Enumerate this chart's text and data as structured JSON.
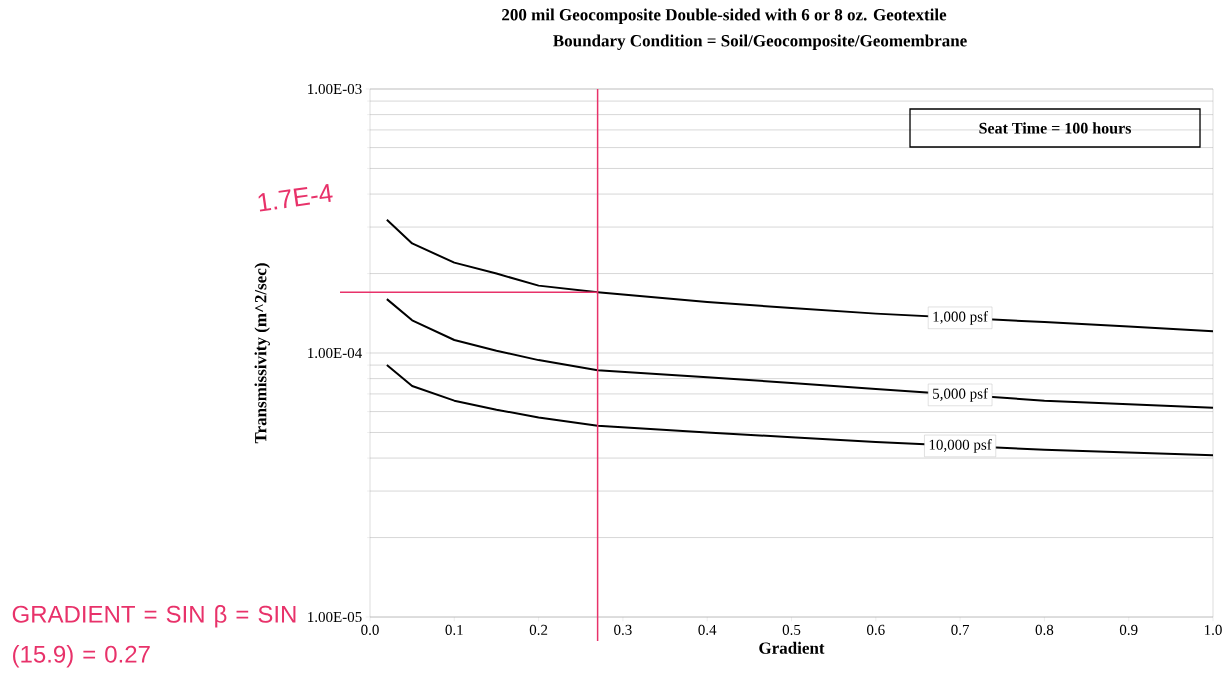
{
  "chart_data": {
    "type": "line",
    "title": "200 mil Geocomposite Double-sided with 6 or 8 oz. Geotextile",
    "subtitle": "Boundary Condition = Soil/Geocomposite/Geomembrane",
    "xlabel": "Gradient",
    "ylabel": "Transmissivity (m^2/sec)",
    "x": [
      0.02,
      0.05,
      0.1,
      0.15,
      0.2,
      0.27,
      0.4,
      0.5,
      0.6,
      0.8,
      0.9,
      1.0
    ],
    "series": [
      {
        "name": "1,000 psf",
        "color": "#000000",
        "values": [
          0.00032,
          0.00026,
          0.00022,
          0.0002,
          0.00018,
          0.00017,
          0.000156,
          0.000148,
          0.000141,
          0.000131,
          0.000126,
          0.000121
        ]
      },
      {
        "name": "5,000 psf",
        "color": "#000000",
        "values": [
          0.00016,
          0.000133,
          0.000112,
          0.000102,
          9.4e-05,
          8.6e-05,
          8.1e-05,
          7.7e-05,
          7.3e-05,
          6.6e-05,
          6.4e-05,
          6.2e-05
        ]
      },
      {
        "name": "10,000 psf",
        "color": "#000000",
        "values": [
          9e-05,
          7.5e-05,
          6.6e-05,
          6.1e-05,
          5.7e-05,
          5.3e-05,
          5e-05,
          4.8e-05,
          4.6e-05,
          4.3e-05,
          4.2e-05,
          4.1e-05
        ]
      }
    ],
    "xlim": [
      0.0,
      1.0
    ],
    "xticks": [
      {
        "value": 0.0,
        "label": "0.0"
      },
      {
        "value": 0.1,
        "label": "0.1"
      },
      {
        "value": 0.2,
        "label": "0.2"
      },
      {
        "value": 0.3,
        "label": "0.3"
      },
      {
        "value": 0.4,
        "label": "0.4"
      },
      {
        "value": 0.5,
        "label": "0.5"
      },
      {
        "value": 0.6,
        "label": "0.6"
      },
      {
        "value": 0.7,
        "label": "0.7"
      },
      {
        "value": 0.8,
        "label": "0.8"
      },
      {
        "value": 0.9,
        "label": "0.9"
      },
      {
        "value": 1.0,
        "label": "1.0"
      }
    ],
    "ylim": [
      1e-05,
      0.001
    ],
    "yticks": [
      {
        "value": 1e-05,
        "label": "1.00E-05"
      },
      {
        "value": 0.0001,
        "label": "1.00E-04"
      },
      {
        "value": 0.001,
        "label": "1.00E-03"
      }
    ],
    "log": "y",
    "grid": "y",
    "legend": false,
    "marker": "none",
    "line_style": "solid",
    "ref_lines": [
      {
        "axis": "x",
        "value": 0.27,
        "color": "#e8326a"
      },
      {
        "axis": "y",
        "value": 0.00017,
        "label": "1.7E-4",
        "color": "#e8326a"
      }
    ],
    "annotations": [
      "Seat Time = 100 hours",
      "GRADIENT = SIN β = SIN (15.9) = 0.27"
    ]
  }
}
